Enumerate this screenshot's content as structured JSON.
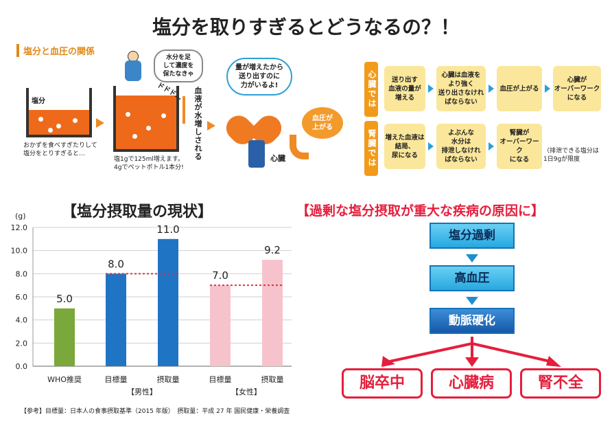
{
  "main_title": "塩分を取りすぎるとどうなるの？！",
  "illustration": {
    "section_label": "塩分と血圧の関係",
    "tank1_label": "塩分",
    "tank1_caption": [
      "おかずを食べすぎたりして",
      "塩分をとりすぎると…"
    ],
    "speech_water": [
      "水分を足",
      "して濃度を",
      "保たなきゃ"
    ],
    "sfx": "ドドド…",
    "tank2_caption": [
      "塩1gで125ml増えます。",
      "4gでペットボトル1本分!"
    ],
    "blood_text": "血液が水増しされる",
    "speech_heart": [
      "量が増えたから",
      "送り出すのに",
      "力がいるよ!"
    ],
    "heart_label": "心臓",
    "bp_up": [
      "血圧が",
      "上がる"
    ]
  },
  "flow": {
    "rows": [
      {
        "side": "心臓では",
        "steps": [
          [
            "送り出す",
            "血液の量が",
            "増える"
          ],
          [
            "心臓は血液を",
            "より強く",
            "送り出さなけれ",
            "ばならない"
          ],
          [
            "血圧が上がる"
          ],
          [
            "心臓が",
            "オーバーワーク",
            "になる"
          ]
        ]
      },
      {
        "side": "腎臓では",
        "steps": [
          [
            "増えた血液は",
            "結局、",
            "尿になる"
          ],
          [
            "よぶんな",
            "水分は",
            "排泄しなけれ",
            "ばならない"
          ],
          [
            "腎臓が",
            "オーバーワーク",
            "になる"
          ]
        ]
      }
    ],
    "note": [
      "（排泄できる塩分は",
      "1日9gが限度"
    ]
  },
  "chart_title": "【塩分摂取量の現状】",
  "chart_data": {
    "type": "bar",
    "ylabel": "(g)",
    "ylim": [
      0,
      12
    ],
    "yticks": [
      "0.0",
      "2.0",
      "4.0",
      "6.0",
      "8.0",
      "10.0",
      "12.0"
    ],
    "categories": [
      "WHO推奨",
      "目標量",
      "摂取量",
      "目標量",
      "摂取量"
    ],
    "values": [
      5.0,
      8.0,
      11.0,
      7.0,
      9.2
    ],
    "value_labels": [
      "5.0",
      "8.0",
      "11.0",
      "7.0",
      "9.2"
    ],
    "colors": [
      "#7aa83a",
      "#1f75c4",
      "#1f75c4",
      "#f6c3cc",
      "#f6c3cc"
    ],
    "groups": [
      "【男性】",
      "【女性】"
    ],
    "reference_lines": [
      {
        "value": 8.0,
        "group": "男性"
      },
      {
        "value": 7.0,
        "group": "女性"
      }
    ]
  },
  "footnote": "【参考】目標量：日本人の食事摂取基準（2015 年版）　摂取量：平成 27 年 国民健康・栄養調査",
  "causes": {
    "title": "【過剰な塩分摂取が重大な疾病の原因に】",
    "chain": [
      "塩分過剰",
      "高血圧",
      "動脈硬化"
    ],
    "results": [
      "脳卒中",
      "心臓病",
      "腎不全"
    ]
  }
}
